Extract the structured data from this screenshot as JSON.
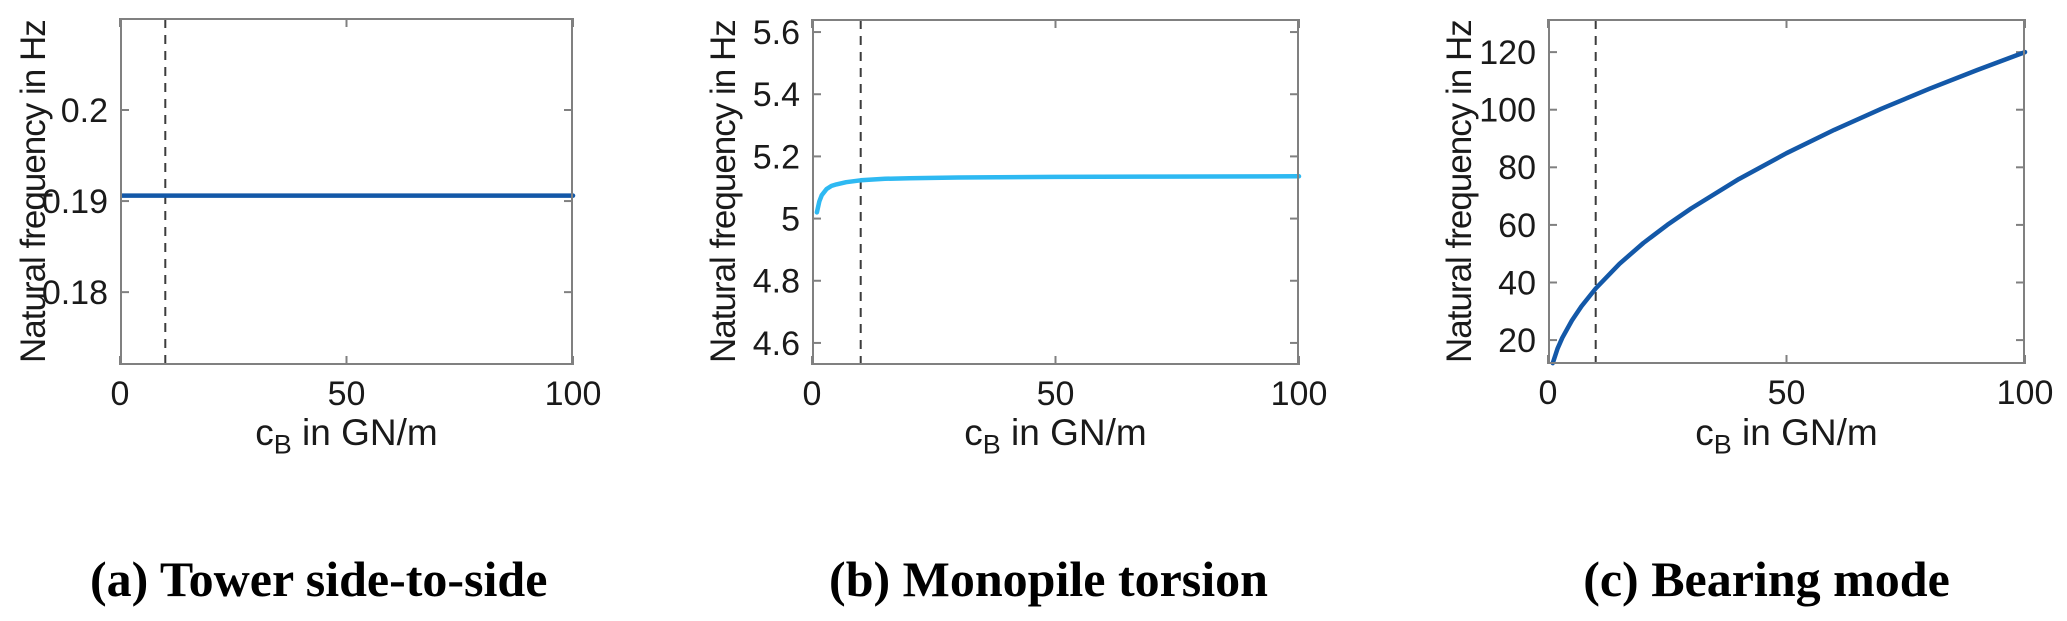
{
  "colors": {
    "background": "#ffffff",
    "axes": "#808080",
    "text": "#1a1a1a",
    "dashed_line": "#3c3c3c",
    "series_dark_blue": "#1358a8",
    "series_light_blue": "#2eb9f2"
  },
  "captions": [
    {
      "text": "(a) Tower side-to-side"
    },
    {
      "text": "(b) Monopile torsion"
    },
    {
      "text": "(c) Bearing mode"
    }
  ],
  "chart_data": [
    {
      "type": "line",
      "title": "",
      "xlabel_main": "c",
      "xlabel_sub": "B",
      "xlabel_rest": " in GN/m",
      "ylabel": "Natural frequency in Hz",
      "xlim": [
        0,
        100
      ],
      "ylim": [
        0.172,
        0.2101
      ],
      "xticks": [
        0,
        50,
        100
      ],
      "xtick_labels": [
        "0",
        "50",
        "100"
      ],
      "yticks": [
        0.18,
        0.19,
        0.2
      ],
      "ytick_labels": [
        "0.18",
        "0.19",
        "0.2"
      ],
      "grid": false,
      "legend": false,
      "dashed_vline_x": 10,
      "series": [
        {
          "name": "tower-side-to-side-frequency",
          "color": "#1358a8",
          "x": [
            0.5,
            100
          ],
          "y": [
            0.1906,
            0.1906
          ]
        }
      ]
    },
    {
      "type": "line",
      "title": "",
      "xlabel_main": "c",
      "xlabel_sub": "B",
      "xlabel_rest": " in GN/m",
      "ylabel": "Natural frequency in Hz",
      "xlim": [
        0,
        100
      ],
      "ylim": [
        4.529,
        5.642
      ],
      "xticks": [
        0,
        50,
        100
      ],
      "xtick_labels": [
        "0",
        "50",
        "100"
      ],
      "yticks": [
        4.6,
        4.8,
        5.0,
        5.2,
        5.4,
        5.6
      ],
      "ytick_labels": [
        "4.6",
        "4.8",
        "5",
        "5.2",
        "5.4",
        "5.6"
      ],
      "grid": false,
      "legend": false,
      "dashed_vline_x": 10,
      "series": [
        {
          "name": "monopile-torsion-frequency",
          "color": "#2eb9f2",
          "x": [
            1,
            1.5,
            2,
            3,
            4,
            5,
            7,
            10,
            15,
            20,
            30,
            50,
            70,
            100
          ],
          "y": [
            5.02,
            5.055,
            5.075,
            5.095,
            5.105,
            5.11,
            5.117,
            5.123,
            5.128,
            5.13,
            5.132,
            5.134,
            5.135,
            5.136
          ]
        }
      ]
    },
    {
      "type": "line",
      "title": "",
      "xlabel_main": "c",
      "xlabel_sub": "B",
      "xlabel_rest": " in GN/m",
      "ylabel": "Natural frequency in Hz",
      "xlim": [
        0,
        100
      ],
      "ylim": [
        11.7,
        131.5
      ],
      "xticks": [
        0,
        50,
        100
      ],
      "xtick_labels": [
        "0",
        "50",
        "100"
      ],
      "yticks": [
        20,
        40,
        60,
        80,
        100,
        120
      ],
      "ytick_labels": [
        "20",
        "40",
        "60",
        "80",
        "100",
        "120"
      ],
      "grid": false,
      "legend": false,
      "dashed_vline_x": 10,
      "series": [
        {
          "name": "bearing-mode-frequency",
          "color": "#1358a8",
          "x": [
            1,
            2,
            3,
            5,
            7,
            10,
            15,
            20,
            25,
            30,
            40,
            50,
            60,
            70,
            80,
            90,
            100
          ],
          "y": [
            12,
            17,
            20.8,
            26.8,
            31.7,
            37.9,
            46.5,
            53.7,
            60,
            65.7,
            75.9,
            84.9,
            93,
            100.4,
            107.3,
            113.8,
            120
          ]
        }
      ]
    }
  ]
}
